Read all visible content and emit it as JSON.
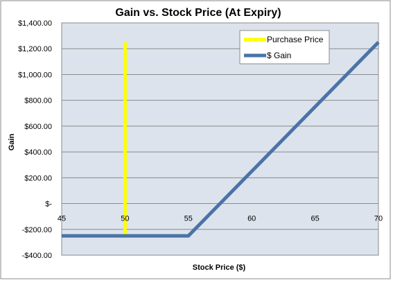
{
  "chart_data": {
    "type": "line",
    "title": "Gain vs. Stock Price (At Expiry)",
    "xlabel": "Stock Price ($)",
    "ylabel": "Gain",
    "xlim": [
      45,
      70
    ],
    "ylim": [
      -400,
      1400
    ],
    "x_ticks": [
      45,
      50,
      55,
      60,
      65,
      70
    ],
    "x_tick_labels": [
      "45",
      "50",
      "55",
      "60",
      "65",
      "70"
    ],
    "y_ticks": [
      -400,
      -200,
      0,
      200,
      400,
      600,
      800,
      1000,
      1200,
      1400
    ],
    "y_tick_labels": [
      "-$400.00",
      "-$200.00",
      "$-",
      "$200.00",
      "$400.00",
      "$600.00",
      "$800.00",
      "$1,000.00",
      "$1,200.00",
      "$1,400.00"
    ],
    "grid": "horizontal",
    "legend_position": "top-right",
    "series": [
      {
        "name": "Purchase Price",
        "color": "#ffff00",
        "points": [
          [
            50,
            -250
          ],
          [
            50,
            1250
          ]
        ]
      },
      {
        "name": "$ Gain",
        "color": "#4a73a8",
        "points": [
          [
            45,
            -250
          ],
          [
            55,
            -250
          ],
          [
            70,
            1250
          ]
        ]
      }
    ]
  },
  "colors": {
    "plot_background": "#dce3ec",
    "gridline": "#8a8a8a",
    "frame": "#8a8a8a"
  }
}
